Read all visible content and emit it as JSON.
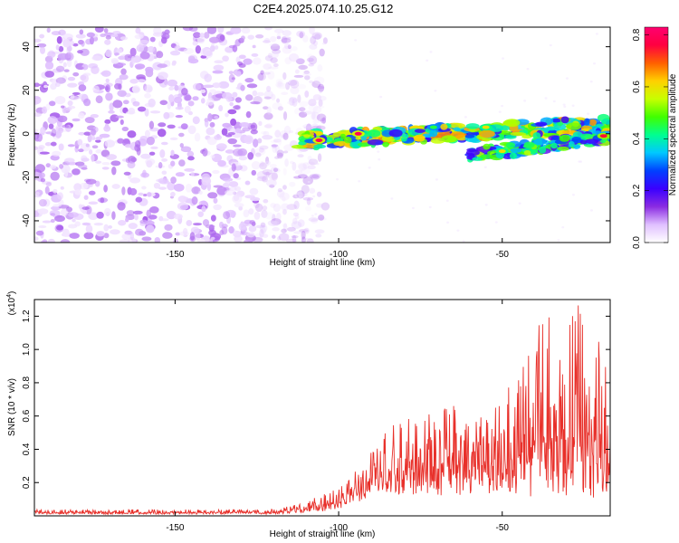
{
  "title": "C2E4.2025.074.10.25.G12",
  "chart_data": [
    {
      "type": "heatmap",
      "xlabel": "Height of straight line (km)",
      "ylabel": "Frequency (Hz)",
      "xlim": [
        -193,
        -17
      ],
      "ylim": [
        -50,
        49
      ],
      "x_ticks": [
        -150,
        -100,
        -50
      ],
      "y_ticks": [
        -40,
        -20,
        0,
        20,
        40
      ],
      "colorbar": {
        "label": "Normalized spectral amplitude",
        "range": [
          0,
          0.83
        ],
        "ticks": [
          0.0,
          0.2,
          0.4,
          0.6,
          0.8
        ],
        "tick_labels": [
          "0.0",
          "0.2",
          "0.4",
          "0.6",
          "0.8"
        ],
        "colormap": [
          "#ffffff",
          "#e0c0ff",
          "#8a2be2",
          "#3a00ff",
          "#0040ff",
          "#00c8ff",
          "#00ff90",
          "#40ff00",
          "#c8ff00",
          "#ffd000",
          "#ff6000",
          "#ff0040",
          "#ff0070"
        ]
      },
      "features": [
        {
          "description": "noise",
          "x_range": [
            -193,
            -112
          ],
          "y_range": [
            -50,
            49
          ],
          "amplitude_range": [
            0.02,
            0.12
          ]
        },
        {
          "description": "signal_band",
          "x_start": -112,
          "x_end": -17,
          "freq_start": -3,
          "freq_end": 4,
          "amplitude_range": [
            0.2,
            0.83
          ]
        },
        {
          "description": "secondary_band",
          "x_start": -60,
          "x_end": -17,
          "freq_start": -10,
          "freq_end": -1,
          "amplitude_range": [
            0.15,
            0.55
          ]
        },
        {
          "description": "strong_peaks",
          "points": [
            [
              -106,
              -3,
              0.8
            ],
            [
              -94,
              0,
              0.8
            ],
            [
              -71,
              3,
              0.45
            ],
            [
              -55,
              3,
              0.6
            ],
            [
              -50,
              -8,
              0.6
            ],
            [
              -19,
              -1,
              0.75
            ]
          ]
        }
      ]
    },
    {
      "type": "line",
      "xlabel": "Height of straight line (km)",
      "ylabel": "SNR (10 * v/v)",
      "y_multiplier": "(x10^4)",
      "y_multiplier_base": "(x10",
      "y_multiplier_exp": "4",
      "xlim": [
        -193,
        -17
      ],
      "ylim": [
        0,
        1.3
      ],
      "x_ticks": [
        -150,
        -100,
        -50
      ],
      "y_ticks": [
        0.2,
        0.4,
        0.6,
        0.8,
        1.0,
        1.2
      ],
      "y_tick_labels": [
        "0.2",
        "0.4",
        "0.6",
        "0.8",
        "1.0",
        "1.2"
      ],
      "line_color": "#e8302a",
      "envelope": [
        {
          "x": -193,
          "base": 0.01,
          "peak": 0.04
        },
        {
          "x": -120,
          "base": 0.01,
          "peak": 0.04
        },
        {
          "x": -110,
          "base": 0.02,
          "peak": 0.08
        },
        {
          "x": -103,
          "base": 0.03,
          "peak": 0.16
        },
        {
          "x": -98,
          "base": 0.05,
          "peak": 0.2
        },
        {
          "x": -92,
          "base": 0.1,
          "peak": 0.33
        },
        {
          "x": -90,
          "base": 0.15,
          "peak": 0.42
        },
        {
          "x": -85,
          "base": 0.12,
          "peak": 0.58
        },
        {
          "x": -75,
          "base": 0.13,
          "peak": 0.6
        },
        {
          "x": -70,
          "base": 0.12,
          "peak": 0.73
        },
        {
          "x": -60,
          "base": 0.12,
          "peak": 0.62
        },
        {
          "x": -52,
          "base": 0.14,
          "peak": 0.72
        },
        {
          "x": -45,
          "base": 0.12,
          "peak": 0.85
        },
        {
          "x": -38,
          "base": 0.1,
          "peak": 1.2
        },
        {
          "x": -30,
          "base": 0.1,
          "peak": 1.2
        },
        {
          "x": -25,
          "base": 0.12,
          "peak": 1.3
        },
        {
          "x": -20,
          "base": 0.1,
          "peak": 1.1
        },
        {
          "x": -17,
          "base": 0.12,
          "peak": 0.9
        }
      ]
    }
  ]
}
